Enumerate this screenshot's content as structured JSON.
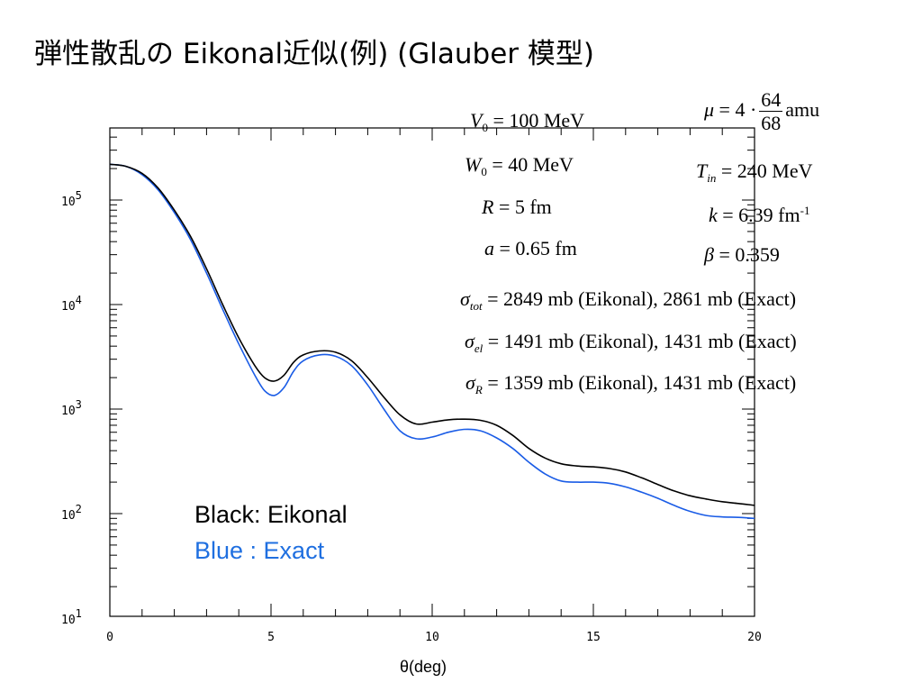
{
  "slide": {
    "title": "弾性散乱の Eikonal近似(例) (Glauber 模型)"
  },
  "colors": {
    "eikonal": "#000000",
    "exact": "#1a5ce6",
    "legend_exact_text": "#1f6fe0"
  },
  "params": {
    "V0": {
      "sym": "V",
      "sub": "0",
      "value": "= 100 MeV"
    },
    "W0": {
      "sym": "W",
      "sub": "0",
      "value": "= 40 MeV"
    },
    "R": {
      "sym": "R",
      "value": "= 5 fm"
    },
    "a": {
      "sym": "a",
      "value": "= 0.65 fm"
    },
    "mu": {
      "sym": "μ",
      "pre": "= 4 ·",
      "num": "64",
      "den": "68",
      "unit": "amu"
    },
    "Tin": {
      "sym": "T",
      "sub": "in",
      "value": "= 240 MeV"
    },
    "k": {
      "sym": "k",
      "value": "= 6.39 fm",
      "sup": "-1"
    },
    "beta": {
      "sym": "β",
      "value": "= 0.359"
    },
    "sigma_tot": {
      "sym": "σ",
      "sub": "tot",
      "value": "= 2849 mb (Eikonal), 2861 mb (Exact)"
    },
    "sigma_el": {
      "sym": "σ",
      "sub": "el",
      "value": "= 1491 mb (Eikonal), 1431 mb (Exact)"
    },
    "sigma_R": {
      "sym": "σ",
      "sub": "R",
      "value": "= 1359 mb (Eikonal), 1431 mb (Exact)"
    }
  },
  "chart_data": {
    "type": "line",
    "title": "",
    "xlabel": "θ(deg)",
    "ylabel": "",
    "xlim": [
      0,
      20
    ],
    "ylim": [
      10,
      500000
    ],
    "yscale": "log",
    "xticks": [
      0,
      5,
      10,
      15,
      20
    ],
    "ytick_labels": [
      {
        "value": 100000,
        "base": "10",
        "exp": "5"
      },
      {
        "value": 10000,
        "base": "10",
        "exp": "4"
      },
      {
        "value": 1000,
        "base": "10",
        "exp": "3"
      },
      {
        "value": 100,
        "base": "10",
        "exp": "2"
      },
      {
        "value": 10,
        "base": "10",
        "exp": "1"
      }
    ],
    "legend": {
      "placement": "lower-left",
      "entries": [
        "Black: Eikonal",
        "Blue : Exact"
      ]
    },
    "series": [
      {
        "name": "Eikonal",
        "x": [
          0,
          0.5,
          1,
          1.5,
          2,
          2.5,
          3,
          3.5,
          4,
          4.5,
          4.8,
          5.1,
          5.4,
          5.7,
          6,
          6.5,
          7,
          7.5,
          8,
          8.5,
          9,
          9.5,
          10,
          10.5,
          11,
          11.5,
          12,
          12.5,
          13,
          13.5,
          14,
          14.5,
          15,
          15.5,
          16,
          16.5,
          17,
          17.5,
          18,
          18.5,
          19,
          19.5,
          20
        ],
        "y": [
          220000,
          210000,
          180000,
          130000,
          80000,
          45000,
          22000,
          10000,
          4800,
          2600,
          2000,
          1850,
          2100,
          2800,
          3300,
          3600,
          3500,
          2900,
          2000,
          1300,
          880,
          720,
          750,
          790,
          800,
          780,
          700,
          560,
          420,
          340,
          300,
          285,
          280,
          270,
          250,
          220,
          190,
          165,
          148,
          138,
          130,
          125,
          120
        ]
      },
      {
        "name": "Exact",
        "x": [
          0,
          0.5,
          1,
          1.5,
          2,
          2.5,
          3,
          3.5,
          4,
          4.5,
          4.8,
          5.1,
          5.4,
          5.7,
          6,
          6.5,
          7,
          7.5,
          8,
          8.5,
          9,
          9.5,
          10,
          10.5,
          11,
          11.5,
          12,
          12.5,
          13,
          13.5,
          14,
          14.5,
          15,
          15.5,
          16,
          16.5,
          17,
          17.5,
          18,
          18.5,
          19,
          19.5,
          20
        ],
        "y": [
          220000,
          210000,
          175000,
          125000,
          76000,
          42000,
          20000,
          9000,
          4200,
          2100,
          1500,
          1350,
          1600,
          2300,
          2900,
          3300,
          3200,
          2600,
          1700,
          1000,
          620,
          520,
          540,
          600,
          640,
          620,
          530,
          420,
          310,
          240,
          205,
          200,
          200,
          195,
          180,
          160,
          140,
          120,
          105,
          96,
          93,
          92,
          90
        ]
      }
    ]
  }
}
